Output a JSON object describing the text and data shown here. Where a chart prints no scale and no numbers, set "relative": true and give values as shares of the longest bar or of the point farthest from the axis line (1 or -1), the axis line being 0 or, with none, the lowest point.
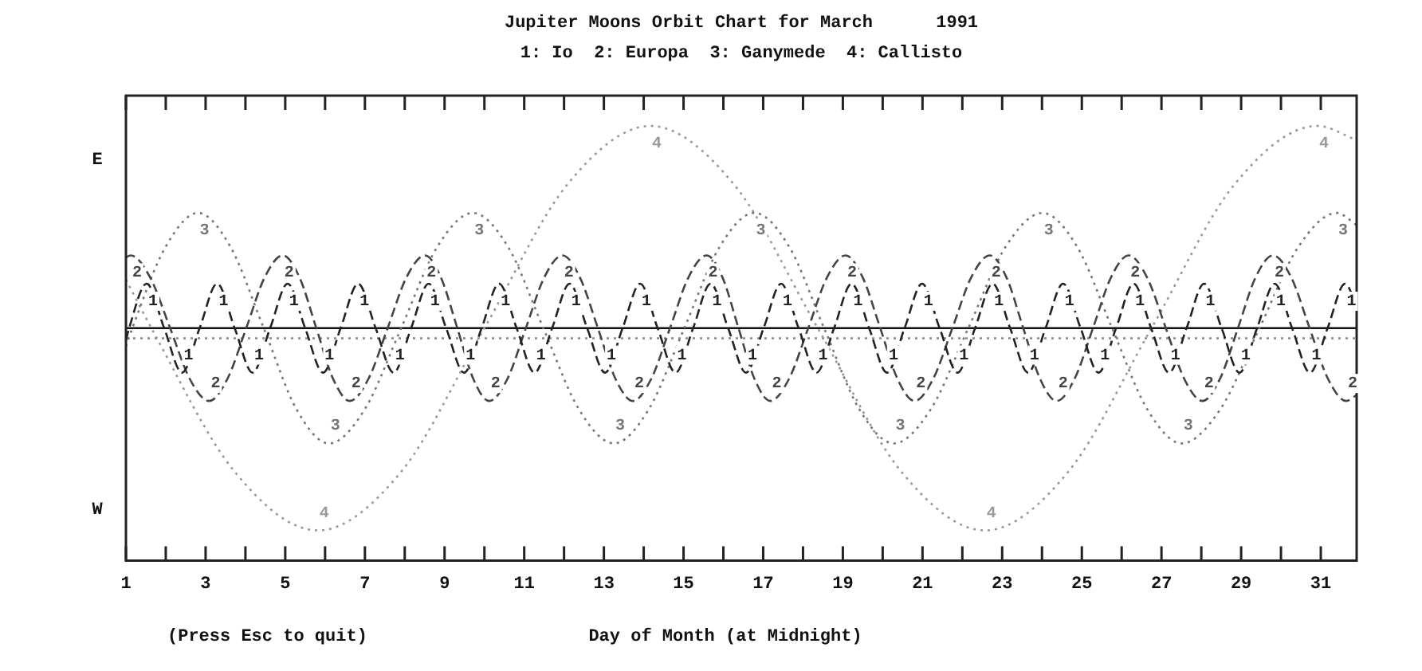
{
  "chart_data": {
    "type": "line",
    "title": "Jupiter Moons Orbit Chart for March      1991",
    "subtitle": "1: Io  2: Europa  3: Ganymede  4: Callisto",
    "xlabel": "Day of Month (at Midnight)",
    "annotations": [
      "E",
      "W",
      "(Press Esc to quit)"
    ],
    "relative": true,
    "legend": false,
    "grid": false,
    "marker": "none",
    "tick_labels": "x",
    "xlim": [
      1,
      31.9
    ],
    "xticks": [
      1,
      {
        "value": 2,
        "label": null
      },
      3,
      {
        "value": 4,
        "label": null
      },
      5,
      {
        "value": 6,
        "label": null
      },
      7,
      {
        "value": 8,
        "label": null
      },
      9,
      {
        "value": 10,
        "label": null
      },
      11,
      {
        "value": 12,
        "label": null
      },
      13,
      {
        "value": 14,
        "label": null
      },
      15,
      {
        "value": 16,
        "label": null
      },
      17,
      {
        "value": 18,
        "label": null
      },
      19,
      {
        "value": 20,
        "label": null
      },
      21,
      {
        "value": 22,
        "label": null
      },
      23,
      {
        "value": 24,
        "label": null
      },
      25,
      {
        "value": 26,
        "label": null
      },
      27,
      {
        "value": 28,
        "label": null
      },
      29,
      {
        "value": 30,
        "label": null
      },
      31
    ],
    "ref_lines": [
      {
        "axis": "y",
        "value": 0,
        "color": "#111111",
        "line_style": "solid"
      },
      {
        "axis": "y",
        "value": -0.05,
        "color": "#888888",
        "line_style": "dotted"
      }
    ],
    "series": [
      {
        "name": "1",
        "color": "#222222",
        "line_style": "dashed",
        "x": [
          1,
          1.08,
          1.52,
          1.96,
          2.41,
          2.85,
          3.29,
          3.73,
          4.18,
          4.62,
          5.06,
          5.5,
          5.95,
          6.39,
          6.83,
          7.27,
          7.72,
          8.16,
          8.6,
          9.04,
          9.49,
          9.93,
          10.37,
          10.81,
          11.26,
          11.7,
          12.14,
          12.58,
          13.03,
          13.47,
          13.91,
          14.35,
          14.8,
          15.24,
          15.68,
          16.12,
          16.57,
          17.01,
          17.45,
          17.89,
          18.34,
          18.78,
          19.22,
          19.66,
          20.11,
          20.55,
          20.99,
          21.43,
          21.88,
          22.32,
          22.76,
          23.2,
          23.65,
          24.09,
          24.53,
          24.97,
          25.42,
          25.86,
          26.3,
          26.74,
          27.19,
          27.63,
          28.07,
          28.51,
          28.96,
          29.4,
          29.84,
          30.28,
          30.73,
          31.17,
          31.61,
          31.9
        ],
        "values": [
          -0.06,
          0,
          0.22,
          0,
          -0.22,
          0,
          0.22,
          0,
          -0.22,
          0,
          0.22,
          0,
          -0.22,
          0,
          0.22,
          0,
          -0.22,
          0,
          0.22,
          0,
          -0.22,
          0,
          0.22,
          0,
          -0.22,
          0,
          0.22,
          0,
          -0.22,
          0,
          0.22,
          0,
          -0.22,
          0,
          0.22,
          0,
          -0.22,
          0,
          0.22,
          0,
          -0.22,
          0,
          0.22,
          0,
          -0.22,
          0,
          0.22,
          0,
          -0.22,
          0,
          0.22,
          0,
          -0.22,
          0,
          0.22,
          0,
          -0.22,
          0,
          0.22,
          0,
          -0.22,
          0,
          0.22,
          0,
          -0.22,
          0,
          0.22,
          0,
          -0.22,
          0,
          0.22,
          0.11
        ]
      },
      {
        "name": "2",
        "color": "#444444",
        "line_style": "dashed",
        "x": [
          1,
          1.12,
          1.61,
          2.11,
          2.6,
          3.09,
          3.55,
          4.02,
          4.48,
          4.94,
          5.36,
          5.78,
          6.2,
          6.62,
          7.09,
          7.57,
          8.04,
          8.51,
          8.91,
          9.32,
          9.72,
          10.12,
          10.58,
          11.04,
          11.5,
          11.96,
          12.4,
          12.85,
          13.29,
          13.73,
          14.19,
          14.66,
          15.12,
          15.58,
          15.98,
          16.38,
          16.78,
          17.18,
          17.65,
          18.13,
          18.6,
          19.07,
          19.5,
          19.94,
          20.37,
          20.8,
          21.27,
          21.75,
          22.22,
          22.69,
          23.11,
          23.53,
          23.95,
          24.37,
          24.82,
          25.28,
          25.73,
          26.18,
          26.64,
          27.11,
          27.57,
          28.03,
          28.47,
          28.92,
          29.36,
          29.8,
          30.26,
          30.72,
          31.18,
          31.64,
          31.9
        ],
        "values": [
          0.35,
          0.36,
          0.25,
          0,
          -0.25,
          -0.36,
          -0.25,
          0,
          0.25,
          0.36,
          0.25,
          0,
          -0.25,
          -0.36,
          -0.25,
          0,
          0.25,
          0.36,
          0.25,
          0,
          -0.25,
          -0.36,
          -0.25,
          0,
          0.25,
          0.36,
          0.25,
          0,
          -0.25,
          -0.36,
          -0.25,
          0,
          0.25,
          0.36,
          0.25,
          0,
          -0.25,
          -0.36,
          -0.25,
          0,
          0.25,
          0.36,
          0.25,
          0,
          -0.25,
          -0.36,
          -0.25,
          0,
          0.25,
          0.36,
          0.25,
          0,
          -0.25,
          -0.36,
          -0.25,
          0,
          0.25,
          0.36,
          0.25,
          0,
          -0.25,
          -0.36,
          -0.25,
          0,
          0.25,
          0.36,
          0.25,
          0,
          -0.25,
          -0.36,
          -0.33
        ]
      },
      {
        "name": "3",
        "color": "#777777",
        "line_style": "dotted",
        "x": [
          1,
          1.16,
          1.99,
          2.81,
          3.63,
          4.46,
          5.28,
          6.1,
          7.0,
          7.91,
          8.81,
          9.71,
          10.6,
          11.48,
          12.37,
          13.25,
          14.13,
          15.02,
          15.9,
          16.78,
          17.66,
          18.53,
          19.41,
          20.28,
          21.21,
          22.15,
          23.08,
          24.01,
          24.89,
          25.76,
          26.64,
          27.51,
          28.48,
          29.46,
          30.43,
          31.4,
          31.9
        ],
        "values": [
          -0.09,
          0,
          0.4,
          0.57,
          0.4,
          0,
          -0.4,
          -0.57,
          -0.4,
          0,
          0.4,
          0.57,
          0.4,
          0,
          -0.4,
          -0.57,
          -0.4,
          0,
          0.4,
          0.57,
          0.4,
          0,
          -0.4,
          -0.57,
          -0.4,
          0,
          0.4,
          0.57,
          0.4,
          0,
          -0.4,
          -0.57,
          -0.4,
          0,
          0.4,
          0.57,
          0.51
        ]
      },
      {
        "name": "4",
        "color": "#999999",
        "line_style": "dotted",
        "x": [
          1,
          1.64,
          3.73,
          5.82,
          7.91,
          10.0,
          12.08,
          14.17,
          16.27,
          18.37,
          20.47,
          22.57,
          24.66,
          26.75,
          28.83,
          30.92,
          31.9
        ],
        "values": [
          0.24,
          0,
          -0.71,
          -1,
          -0.71,
          0,
          0.71,
          1,
          0.71,
          0,
          -0.71,
          -1,
          -0.71,
          0,
          0.71,
          1,
          0.93
        ]
      }
    ]
  }
}
